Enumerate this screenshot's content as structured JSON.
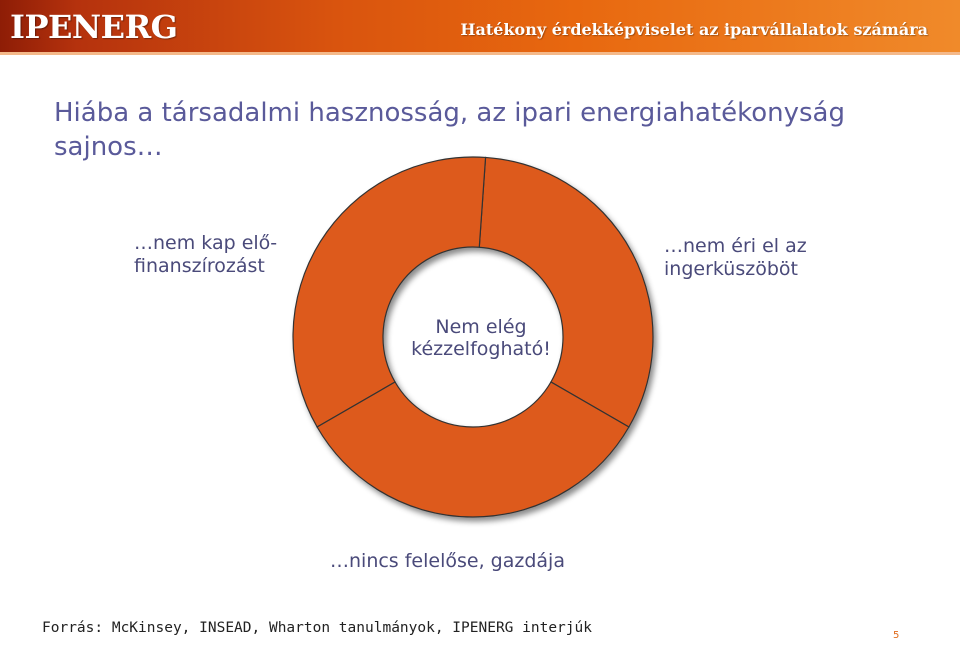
{
  "header": {
    "brand": "IPENERG",
    "tagline": "Hatékony érdekképviselet az iparvállalatok számára"
  },
  "slide": {
    "title": "Hiába a társadalmi hasznosság, az ipari energiahatékonyság sajnos…",
    "labels": {
      "left": "…nem kap elő-\nfinanszírozást",
      "right": "…nem éri el az\ningerküszöböt",
      "bottom": "…nincs felelőse, gazdája",
      "center": "Nem elég kézzelfogható!"
    },
    "source": "Forrás: McKinsey, INSEAD, Wharton tanulmányok, IPENERG interjúk",
    "page_number": "5"
  },
  "colors": {
    "segment_fill": "#dd5a1c",
    "segment_stroke": "#333333",
    "header_accent": "#e8680f",
    "text": "#5a5a9a"
  }
}
